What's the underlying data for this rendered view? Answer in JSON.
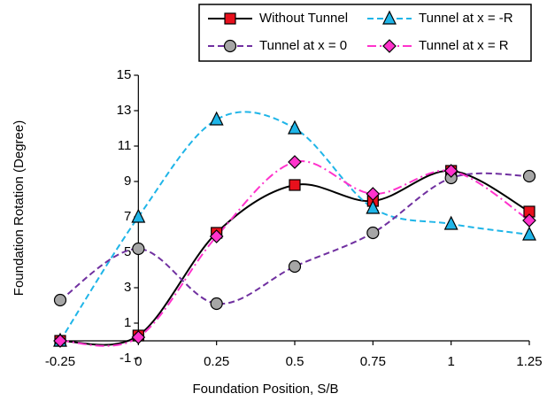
{
  "chart_data": {
    "type": "line",
    "xlabel": "Foundation Position, S/B",
    "ylabel": "Foundation Rotation (Degree)",
    "x": [
      -0.25,
      0,
      0.25,
      0.5,
      0.75,
      1,
      1.25
    ],
    "xlim": [
      -0.25,
      1.25
    ],
    "xticks": [
      -0.25,
      0,
      0.25,
      0.5,
      0.75,
      1,
      1.25
    ],
    "ylim": [
      -1,
      15
    ],
    "yticks": [
      -1,
      1,
      3,
      5,
      7,
      9,
      11,
      13,
      15
    ],
    "series": [
      {
        "name": "Without Tunnel",
        "color": "#000000",
        "marker_color": "#e8101c",
        "marker": "square",
        "dash": "solid",
        "values": [
          0,
          0.3,
          6.1,
          8.8,
          7.9,
          9.6,
          7.3
        ]
      },
      {
        "name": "Tunnel at x = -R",
        "color": "#1fb5e8",
        "marker_color": "#1fb5e8",
        "marker": "triangle",
        "dash": "dashed",
        "values": [
          0,
          7.0,
          12.5,
          12.0,
          7.5,
          6.6,
          6.0
        ]
      },
      {
        "name": "Tunnel at x = 0",
        "color": "#7030a0",
        "marker_color": "#a6a6a6",
        "marker": "circle",
        "dash": "dashed",
        "values": [
          2.3,
          5.2,
          2.1,
          4.2,
          6.1,
          9.2,
          9.3
        ]
      },
      {
        "name": "Tunnel at x = R",
        "color": "#ff33cc",
        "marker_color": "#ff33cc",
        "marker": "diamond",
        "dash": "dashdot",
        "values": [
          0,
          0.2,
          5.9,
          10.1,
          8.3,
          9.6,
          6.8
        ]
      }
    ]
  }
}
